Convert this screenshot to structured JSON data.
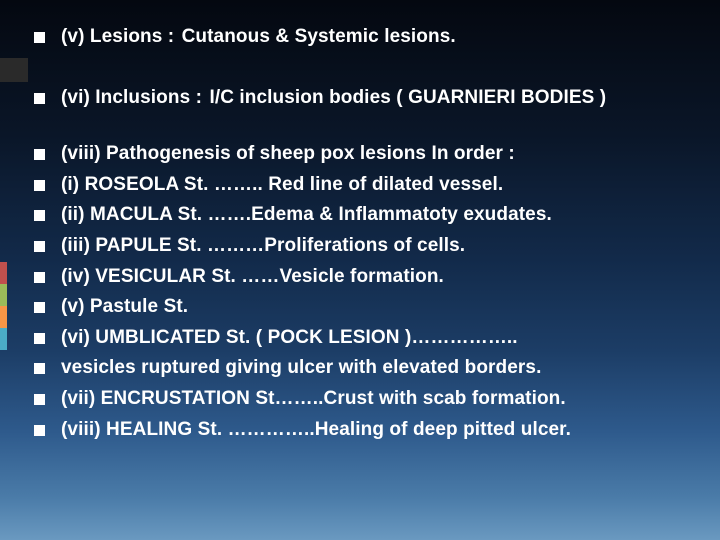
{
  "background": {
    "gradient_stops": [
      "#040810",
      "#0a1628",
      "#122a4a",
      "#1c3d66",
      "#2e5a8c",
      "#4a7ba8",
      "#6a99c0"
    ]
  },
  "accent_strip_color": "#2a2a2a",
  "color_blocks": [
    "#c0504d",
    "#9bbb59",
    "#f79646",
    "#4bacc6"
  ],
  "text_color": "#ffffff",
  "bullet_color": "#ffffff",
  "font_size_pt": 14,
  "font_weight": 600,
  "lines": {
    "l1_label": "(v)   Lesions    :   ",
    "l1_value": "Cutanous & Systemic lesions.",
    "l2_label": "(vi)  Inclusions  :  ",
    "l2_value": "I/C inclusion bodies ( GUARNIERI BODIES )",
    "l3": "(viii)  Pathogenesis of sheep pox lesions In order :",
    "l4": "               (i) ROSEOLA St.  …….. Red line of dilated vessel.",
    "l5": "               (ii) MACULA St.  …….Edema & Inflammatoty exudates.",
    "l6": "               (iii) PAPULE St. ………Proliferations of cells.",
    "l7": "              (iv) VESICULAR St. ……Vesicle formation.",
    "l8": "              (v) Pastule St.",
    "l9": "              (vi) UMBLICATED St. ( POCK LESION )……………..",
    "l10": "                    vesicles ruptured giving ulcer with elevated borders.",
    "l11": "              (vii) ENCRUSTATION St……..Crust with scab formation.",
    "l12": "              (viii) HEALING St. …………..Healing of deep pitted ulcer."
  }
}
